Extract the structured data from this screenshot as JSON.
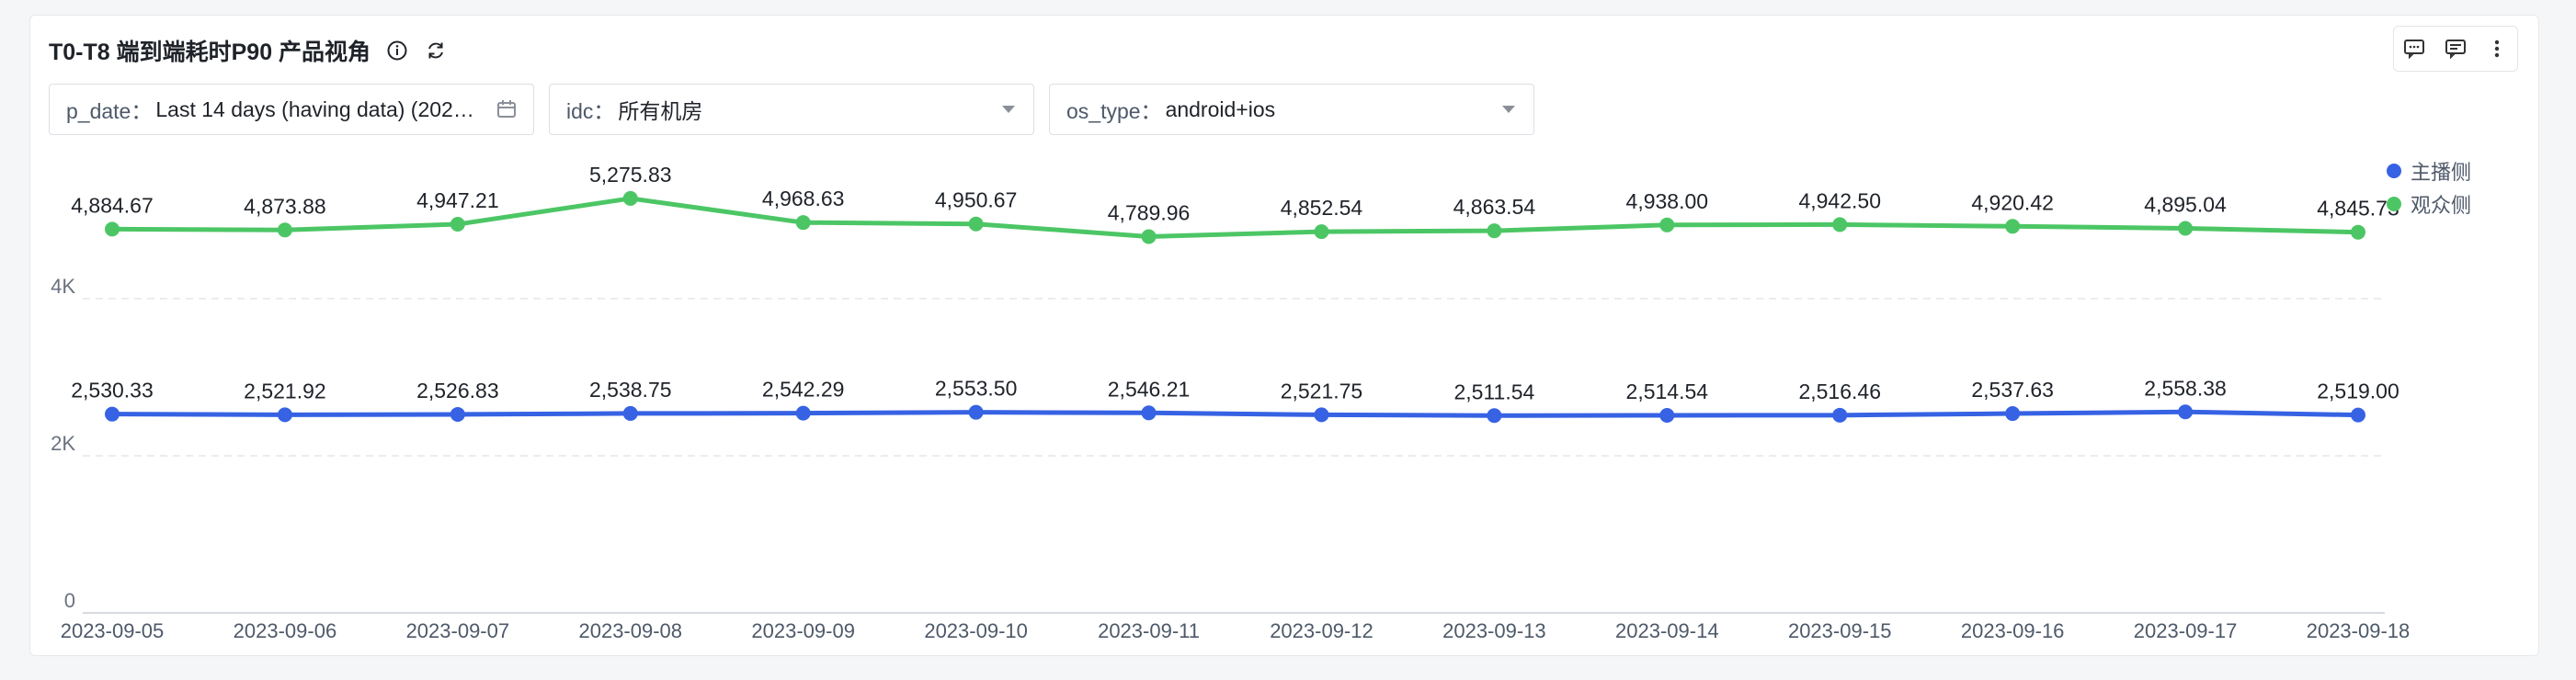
{
  "header": {
    "title": "T0-T8 端到端耗时P90 产品视角"
  },
  "icons": {
    "info": "info-icon",
    "refresh": "refresh-icon",
    "comment": "comment-icon",
    "note": "note-icon",
    "more": "more-icon",
    "calendar": "calendar-icon",
    "dropdown": "chevron-down-icon"
  },
  "filters": [
    {
      "key": "p_date：",
      "value": "Last 14 days (having data) (202…",
      "icon": "calendar-icon"
    },
    {
      "key": "idc：",
      "value": "所有机房",
      "icon": "chevron-down-icon"
    },
    {
      "key": "os_type：",
      "value": "android+ios",
      "icon": "chevron-down-icon"
    }
  ],
  "colors": {
    "series1": "#3662e3",
    "series2": "#4cc665",
    "grid": "#e5e6eb"
  },
  "chart_data": {
    "type": "line",
    "categories": [
      "2023-09-05",
      "2023-09-06",
      "2023-09-07",
      "2023-09-08",
      "2023-09-09",
      "2023-09-10",
      "2023-09-11",
      "2023-09-12",
      "2023-09-13",
      "2023-09-14",
      "2023-09-15",
      "2023-09-16",
      "2023-09-17",
      "2023-09-18"
    ],
    "ylim": [
      0,
      5800
    ],
    "yticks": [
      0,
      2000,
      4000
    ],
    "ytick_labels": [
      "0",
      "2K",
      "4K"
    ],
    "grid": true,
    "legend_position": "right",
    "series": [
      {
        "name": "主播侧",
        "color": "#3662e3",
        "values": [
          2530.33,
          2521.92,
          2526.83,
          2538.75,
          2542.29,
          2553.5,
          2546.21,
          2521.75,
          2511.54,
          2514.54,
          2516.46,
          2537.63,
          2558.38,
          2519.0
        ],
        "labels": [
          "2,530.33",
          "2,521.92",
          "2,526.83",
          "2,538.75",
          "2,542.29",
          "2,553.50",
          "2,546.21",
          "2,521.75",
          "2,511.54",
          "2,514.54",
          "2,516.46",
          "2,537.63",
          "2,558.38",
          "2,519.00"
        ]
      },
      {
        "name": "观众侧",
        "color": "#4cc665",
        "values": [
          4884.67,
          4873.88,
          4947.21,
          5275.83,
          4968.63,
          4950.67,
          4789.96,
          4852.54,
          4863.54,
          4938.0,
          4942.5,
          4920.42,
          4895.04,
          4845.73
        ],
        "labels": [
          "4,884.67",
          "4,873.88",
          "4,947.21",
          "5,275.83",
          "4,968.63",
          "4,950.67",
          "4,789.96",
          "4,852.54",
          "4,863.54",
          "4,938.00",
          "4,942.50",
          "4,920.42",
          "4,895.04",
          "4,845.73"
        ]
      }
    ]
  }
}
